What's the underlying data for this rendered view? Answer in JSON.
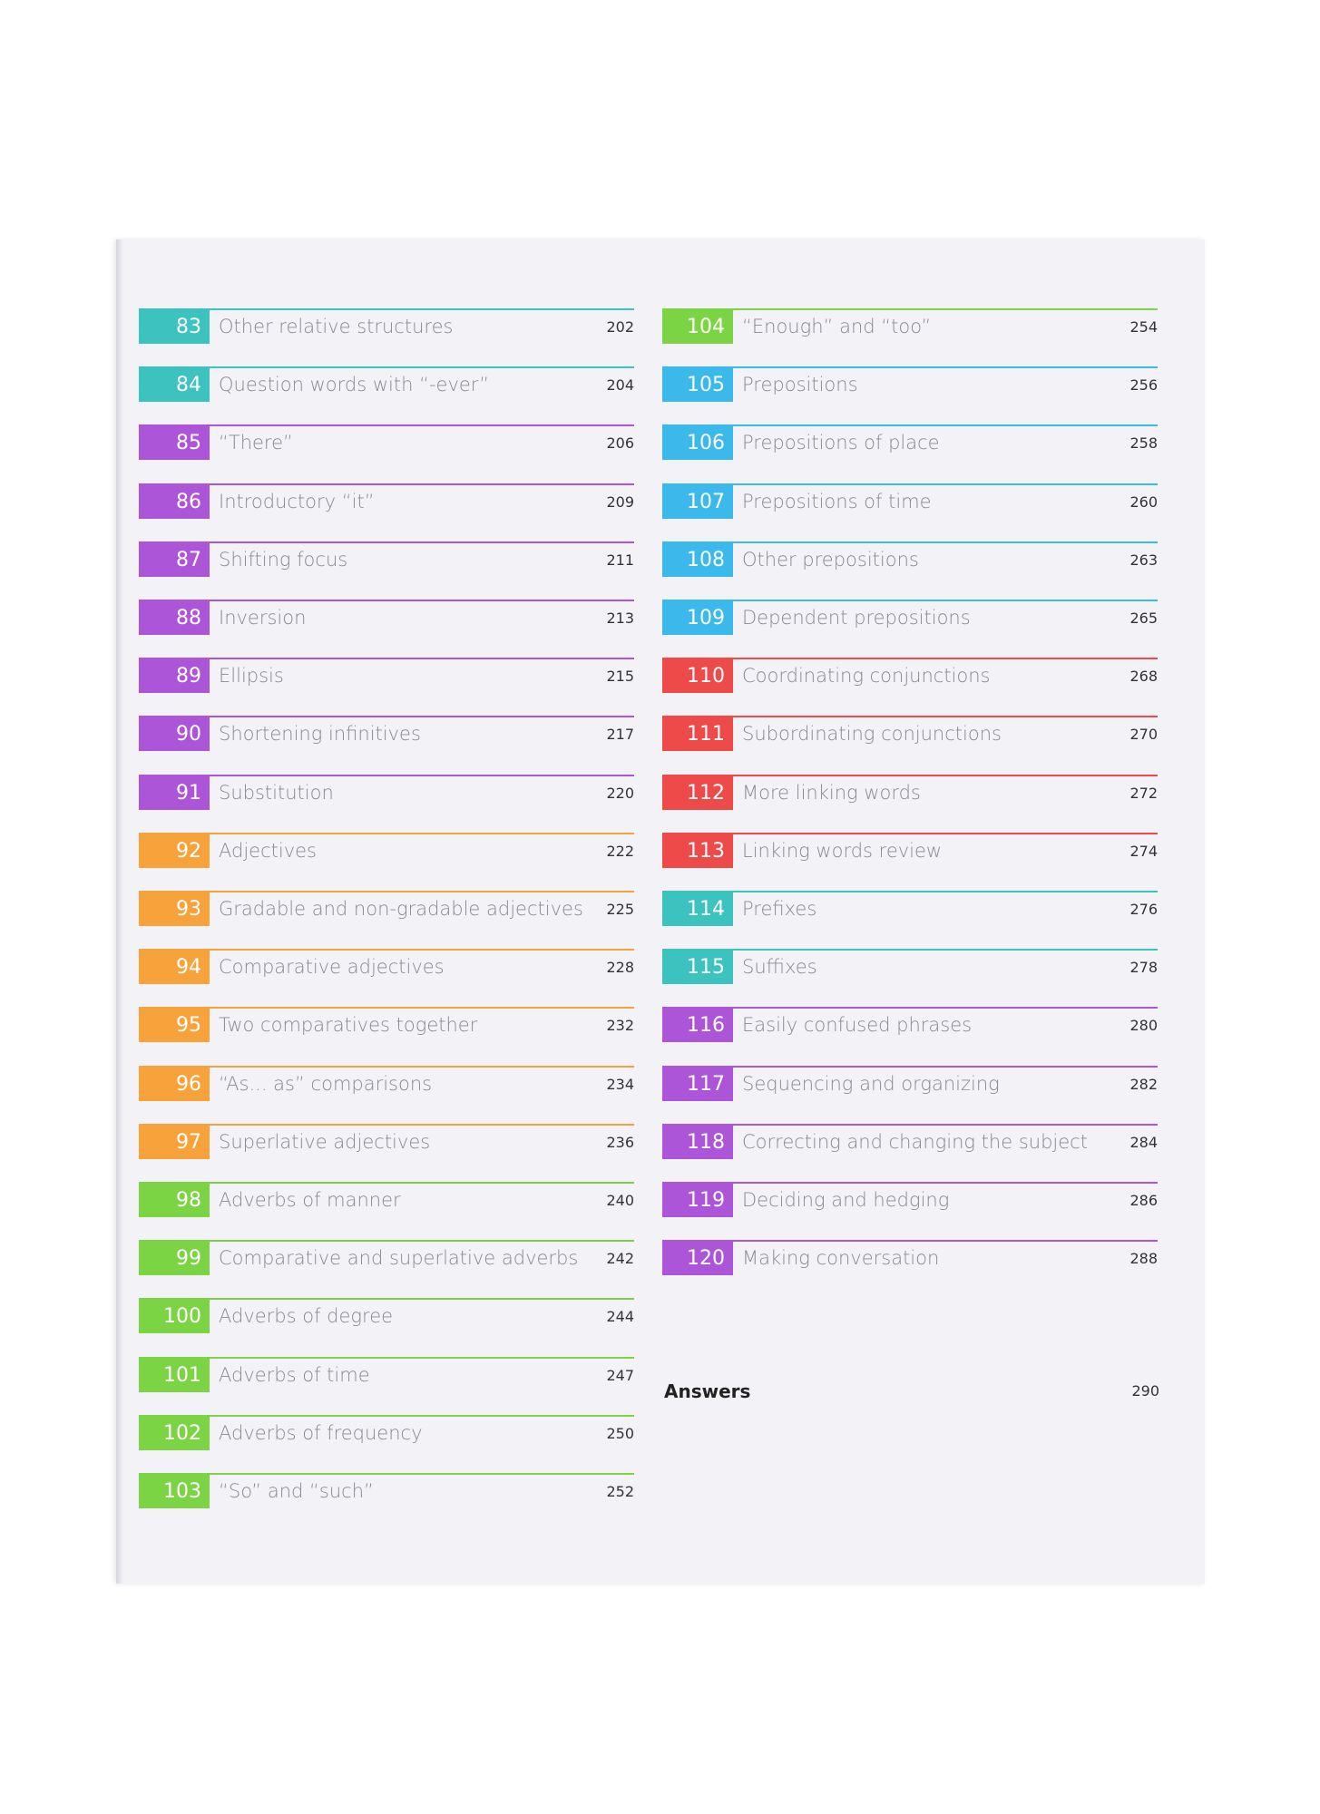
{
  "colors": {
    "teal": "#3cc3c0",
    "purple": "#ad55d8",
    "orange": "#f7a23a",
    "green": "#7bd443",
    "blue": "#3ab9ea",
    "red": "#ef4a4a"
  },
  "left_entries": [
    {
      "num": "83",
      "title": "Other relative structures",
      "page": "202",
      "color": "teal"
    },
    {
      "num": "84",
      "title": "Question words with “-ever”",
      "page": "204",
      "color": "teal"
    },
    {
      "num": "85",
      "title": "“There”",
      "page": "206",
      "color": "purple"
    },
    {
      "num": "86",
      "title": "Introductory “it”",
      "page": "209",
      "color": "purple"
    },
    {
      "num": "87",
      "title": "Shifting focus",
      "page": "211",
      "color": "purple"
    },
    {
      "num": "88",
      "title": "Inversion",
      "page": "213",
      "color": "purple"
    },
    {
      "num": "89",
      "title": "Ellipsis",
      "page": "215",
      "color": "purple"
    },
    {
      "num": "90",
      "title": "Shortening infinitives",
      "page": "217",
      "color": "purple"
    },
    {
      "num": "91",
      "title": "Substitution",
      "page": "220",
      "color": "purple"
    },
    {
      "num": "92",
      "title": "Adjectives",
      "page": "222",
      "color": "orange"
    },
    {
      "num": "93",
      "title": "Gradable and non-gradable adjectives",
      "page": "225",
      "color": "orange"
    },
    {
      "num": "94",
      "title": "Comparative adjectives",
      "page": "228",
      "color": "orange"
    },
    {
      "num": "95",
      "title": "Two comparatives together",
      "page": "232",
      "color": "orange"
    },
    {
      "num": "96",
      "title": "“As... as” comparisons",
      "page": "234",
      "color": "orange"
    },
    {
      "num": "97",
      "title": "Superlative adjectives",
      "page": "236",
      "color": "orange"
    },
    {
      "num": "98",
      "title": "Adverbs of manner",
      "page": "240",
      "color": "green"
    },
    {
      "num": "99",
      "title": "Comparative and superlative adverbs",
      "page": "242",
      "color": "green"
    },
    {
      "num": "100",
      "title": "Adverbs of degree",
      "page": "244",
      "color": "green"
    },
    {
      "num": "101",
      "title": "Adverbs of time",
      "page": "247",
      "color": "green"
    },
    {
      "num": "102",
      "title": "Adverbs of frequency",
      "page": "250",
      "color": "green"
    },
    {
      "num": "103",
      "title": "“So” and “such”",
      "page": "252",
      "color": "green"
    }
  ],
  "right_entries": [
    {
      "num": "104",
      "title": "“Enough” and “too”",
      "page": "254",
      "color": "green"
    },
    {
      "num": "105",
      "title": "Prepositions",
      "page": "256",
      "color": "blue"
    },
    {
      "num": "106",
      "title": "Prepositions of place",
      "page": "258",
      "color": "blue"
    },
    {
      "num": "107",
      "title": "Prepositions of time",
      "page": "260",
      "color": "blue"
    },
    {
      "num": "108",
      "title": "Other prepositions",
      "page": "263",
      "color": "blue"
    },
    {
      "num": "109",
      "title": "Dependent prepositions",
      "page": "265",
      "color": "blue"
    },
    {
      "num": "110",
      "title": "Coordinating conjunctions",
      "page": "268",
      "color": "red"
    },
    {
      "num": "111",
      "title": "Subordinating conjunctions",
      "page": "270",
      "color": "red"
    },
    {
      "num": "112",
      "title": "More linking words",
      "page": "272",
      "color": "red"
    },
    {
      "num": "113",
      "title": "Linking words review",
      "page": "274",
      "color": "red"
    },
    {
      "num": "114",
      "title": "Prefixes",
      "page": "276",
      "color": "teal"
    },
    {
      "num": "115",
      "title": "Suffixes",
      "page": "278",
      "color": "teal"
    },
    {
      "num": "116",
      "title": "Easily confused phrases",
      "page": "280",
      "color": "purple"
    },
    {
      "num": "117",
      "title": "Sequencing and organizing",
      "page": "282",
      "color": "purple"
    },
    {
      "num": "118",
      "title": "Correcting and changing the subject",
      "page": "284",
      "color": "purple"
    },
    {
      "num": "119",
      "title": "Deciding and hedging",
      "page": "286",
      "color": "purple"
    },
    {
      "num": "120",
      "title": "Making conversation",
      "page": "288",
      "color": "purple"
    }
  ],
  "answers": {
    "label": "Answers",
    "page": "290"
  }
}
